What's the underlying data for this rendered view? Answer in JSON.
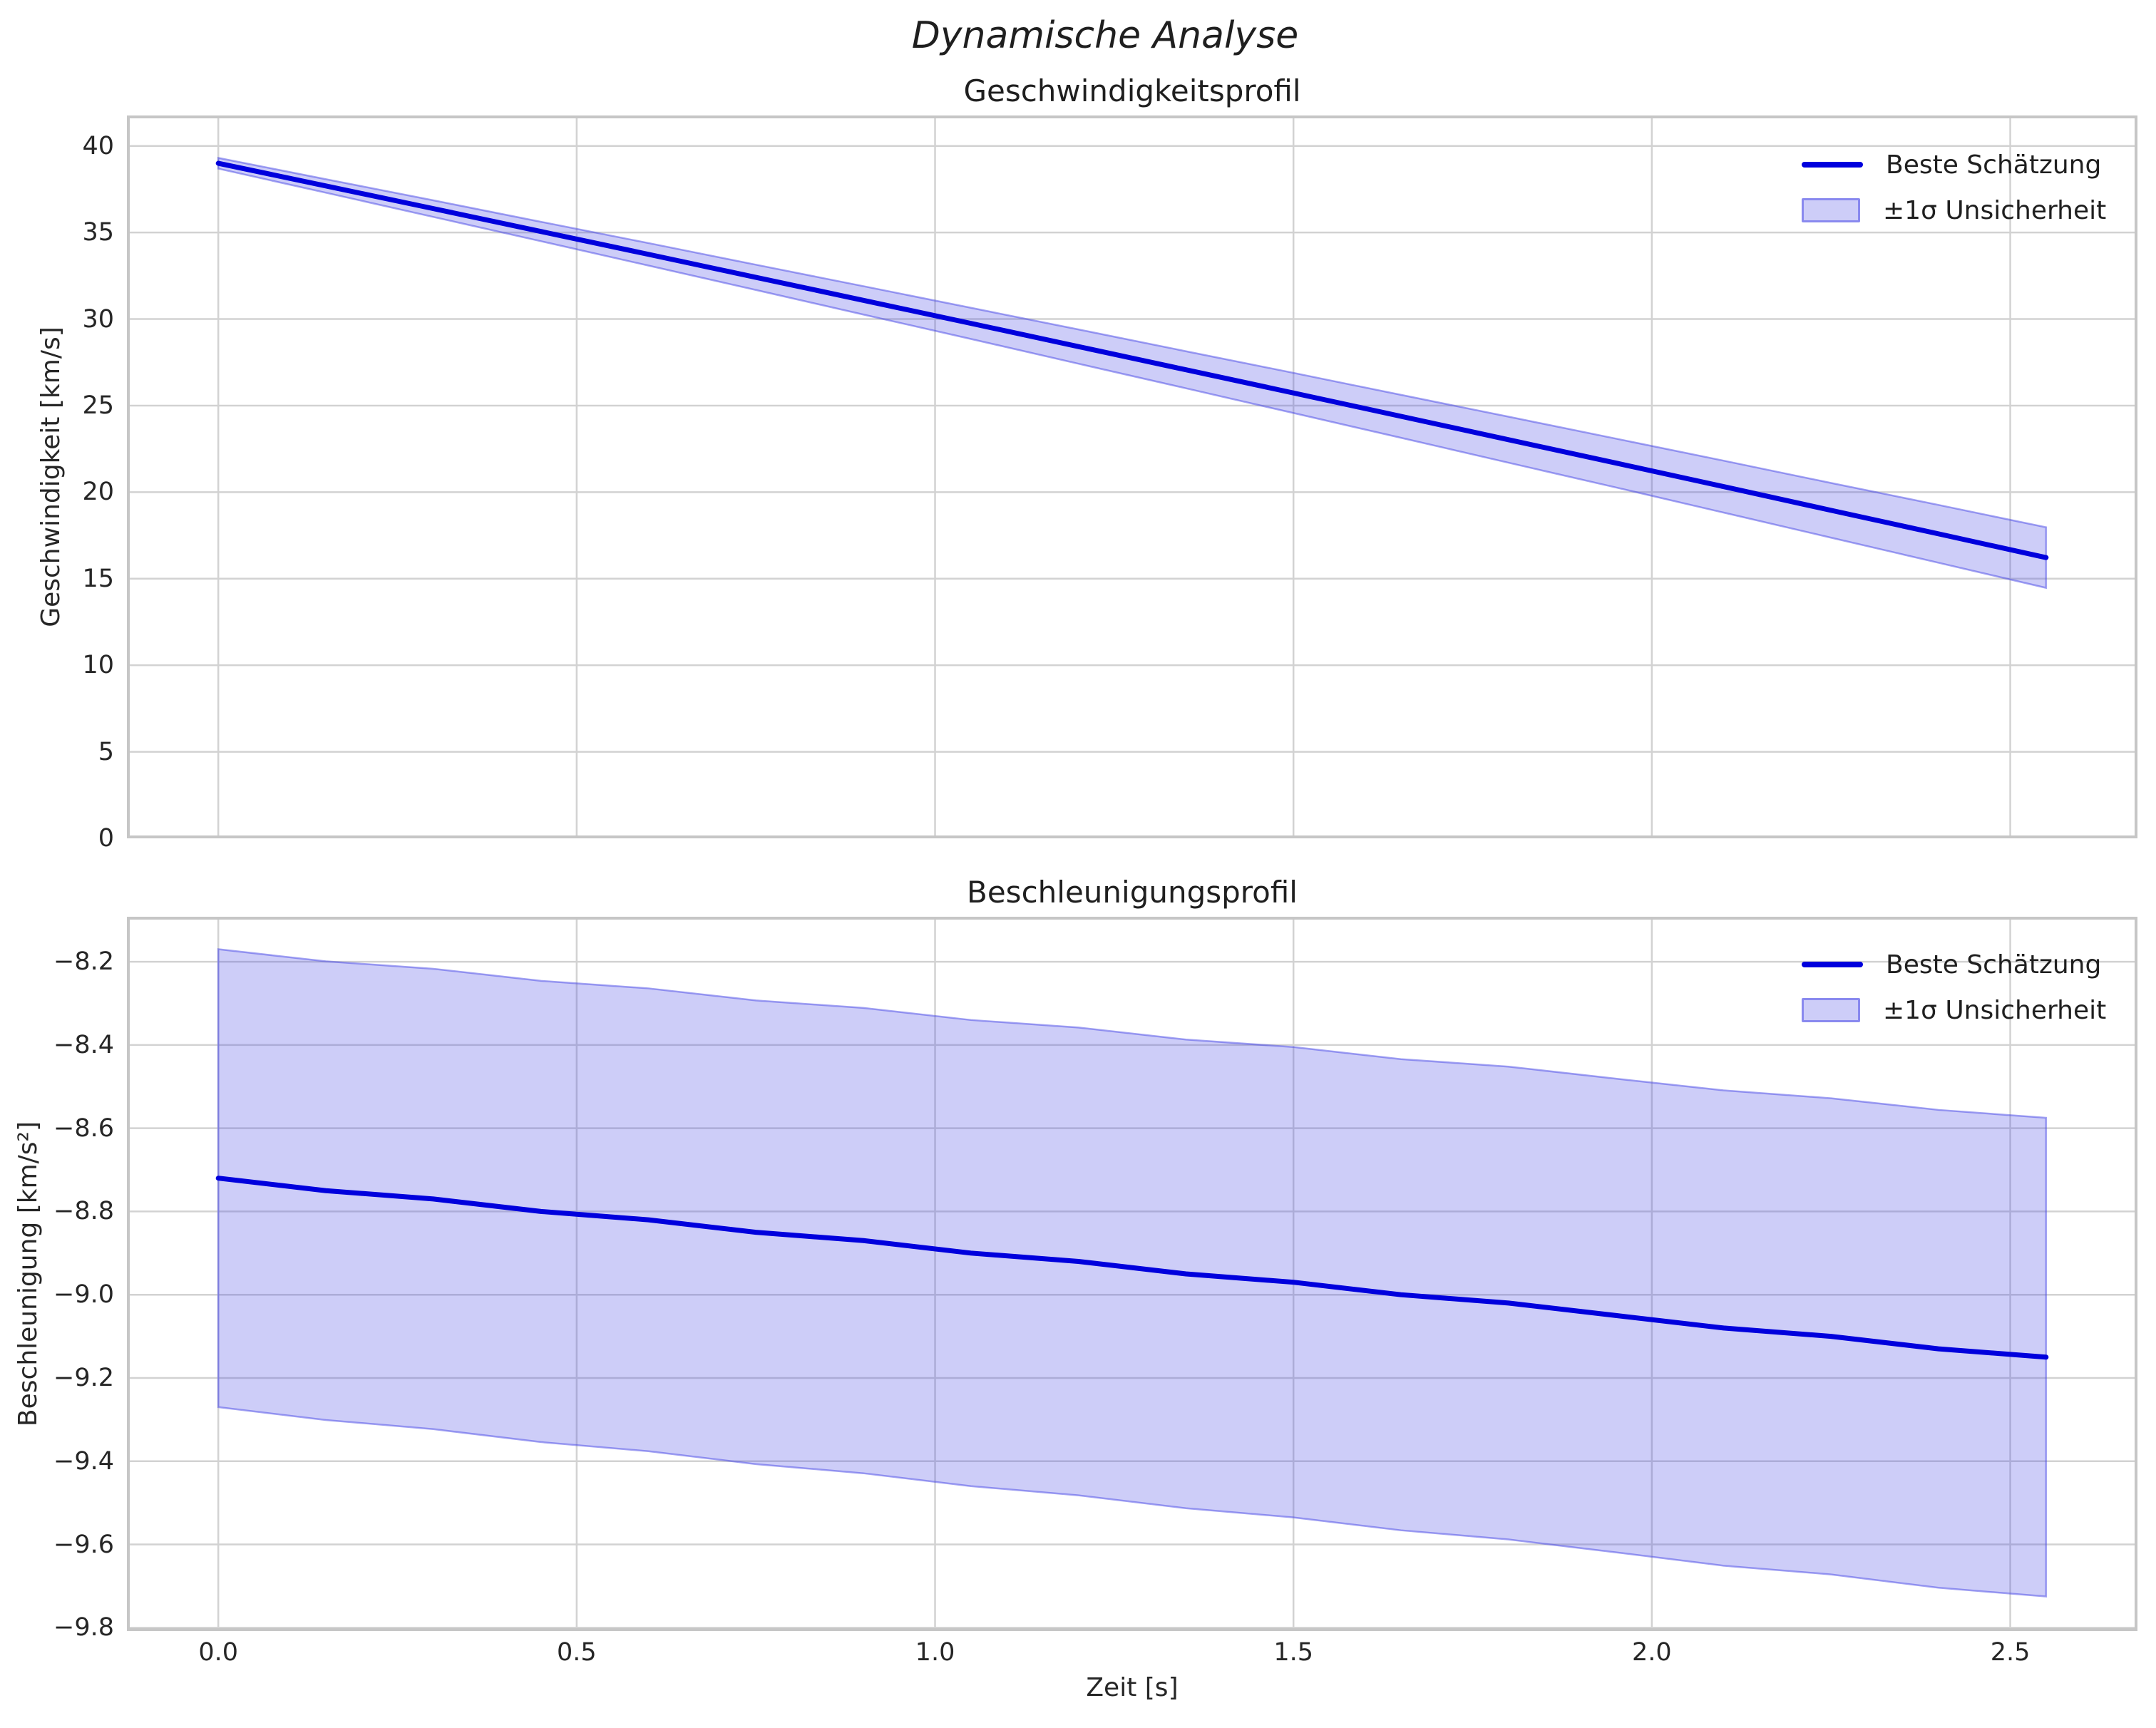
{
  "figure": {
    "title": "Dynamische Analyse"
  },
  "xaxis": {
    "label": "Zeit [s]",
    "ticks": [
      "0.0",
      "0.5",
      "1.0",
      "1.5",
      "2.0",
      "2.5"
    ],
    "tick_values": [
      0.0,
      0.5,
      1.0,
      1.5,
      2.0,
      2.5
    ],
    "range": [
      -0.1275,
      2.6775
    ]
  },
  "colors": {
    "line": "#0000dd",
    "band_fill": "rgba(70,70,230,0.27)",
    "band_edge": "rgba(70,70,230,0.50)",
    "grid": "#d2d2d2",
    "spine": "#c6c6c6",
    "text": "#262626"
  },
  "chart_data": [
    {
      "type": "line",
      "title": "Geschwindigkeitsprofil",
      "xlabel": "Zeit [s]",
      "ylabel": "Geschwindigkeit [km/s]",
      "legend": [
        "Beste Schätzung",
        "±1σ Unsicherheit"
      ],
      "legend_position": "upper right",
      "grid": true,
      "xlim": [
        -0.1275,
        2.6775
      ],
      "ylim": [
        0,
        41.76
      ],
      "ytick_labels": [
        "0",
        "5",
        "10",
        "15",
        "20",
        "25",
        "30",
        "35",
        "40"
      ],
      "ytick_values": [
        0,
        5,
        10,
        15,
        20,
        25,
        30,
        35,
        40
      ],
      "x": [
        0.0,
        0.15,
        0.3,
        0.45,
        0.6,
        0.75,
        0.9,
        1.05,
        1.2,
        1.35,
        1.5,
        1.65,
        1.8,
        1.95,
        2.1,
        2.25,
        2.4,
        2.55
      ],
      "mean": [
        39.0,
        37.69,
        36.38,
        35.06,
        33.74,
        32.41,
        31.08,
        29.75,
        28.41,
        27.07,
        25.73,
        24.38,
        23.03,
        21.68,
        20.32,
        18.95,
        17.59,
        16.22
      ],
      "sigma": [
        0.31,
        0.39,
        0.48,
        0.56,
        0.65,
        0.73,
        0.82,
        0.9,
        0.99,
        1.07,
        1.16,
        1.24,
        1.33,
        1.41,
        1.5,
        1.58,
        1.67,
        1.75
      ]
    },
    {
      "type": "line",
      "title": "Beschleunigungsprofil",
      "xlabel": "Zeit [s]",
      "ylabel": "Beschleunigung [km/s²]",
      "legend": [
        "Beste Schätzung",
        "±1σ Unsicherheit"
      ],
      "legend_position": "upper right",
      "grid": true,
      "xlim": [
        -0.1275,
        2.6775
      ],
      "ylim": [
        -9.808,
        -8.092
      ],
      "ytick_labels": [
        "−8.2",
        "−8.4",
        "−8.6",
        "−8.8",
        "−9.0",
        "−9.2",
        "−9.4",
        "−9.6",
        "−9.8"
      ],
      "ytick_values": [
        -8.2,
        -8.4,
        -8.6,
        -8.8,
        -9.0,
        -9.2,
        -9.4,
        -9.6,
        -9.8
      ],
      "x": [
        0.0,
        0.15,
        0.3,
        0.45,
        0.6,
        0.75,
        0.9,
        1.05,
        1.2,
        1.35,
        1.5,
        1.65,
        1.8,
        1.95,
        2.1,
        2.25,
        2.4,
        2.55
      ],
      "mean": [
        -8.72,
        -8.75,
        -8.77,
        -8.8,
        -8.82,
        -8.85,
        -8.87,
        -8.9,
        -8.92,
        -8.95,
        -8.97,
        -9.0,
        -9.02,
        -9.05,
        -9.08,
        -9.1,
        -9.13,
        -9.15
      ],
      "sigma": [
        0.55,
        0.551,
        0.553,
        0.554,
        0.556,
        0.557,
        0.559,
        0.56,
        0.562,
        0.563,
        0.565,
        0.566,
        0.568,
        0.569,
        0.571,
        0.572,
        0.574,
        0.575
      ]
    }
  ]
}
